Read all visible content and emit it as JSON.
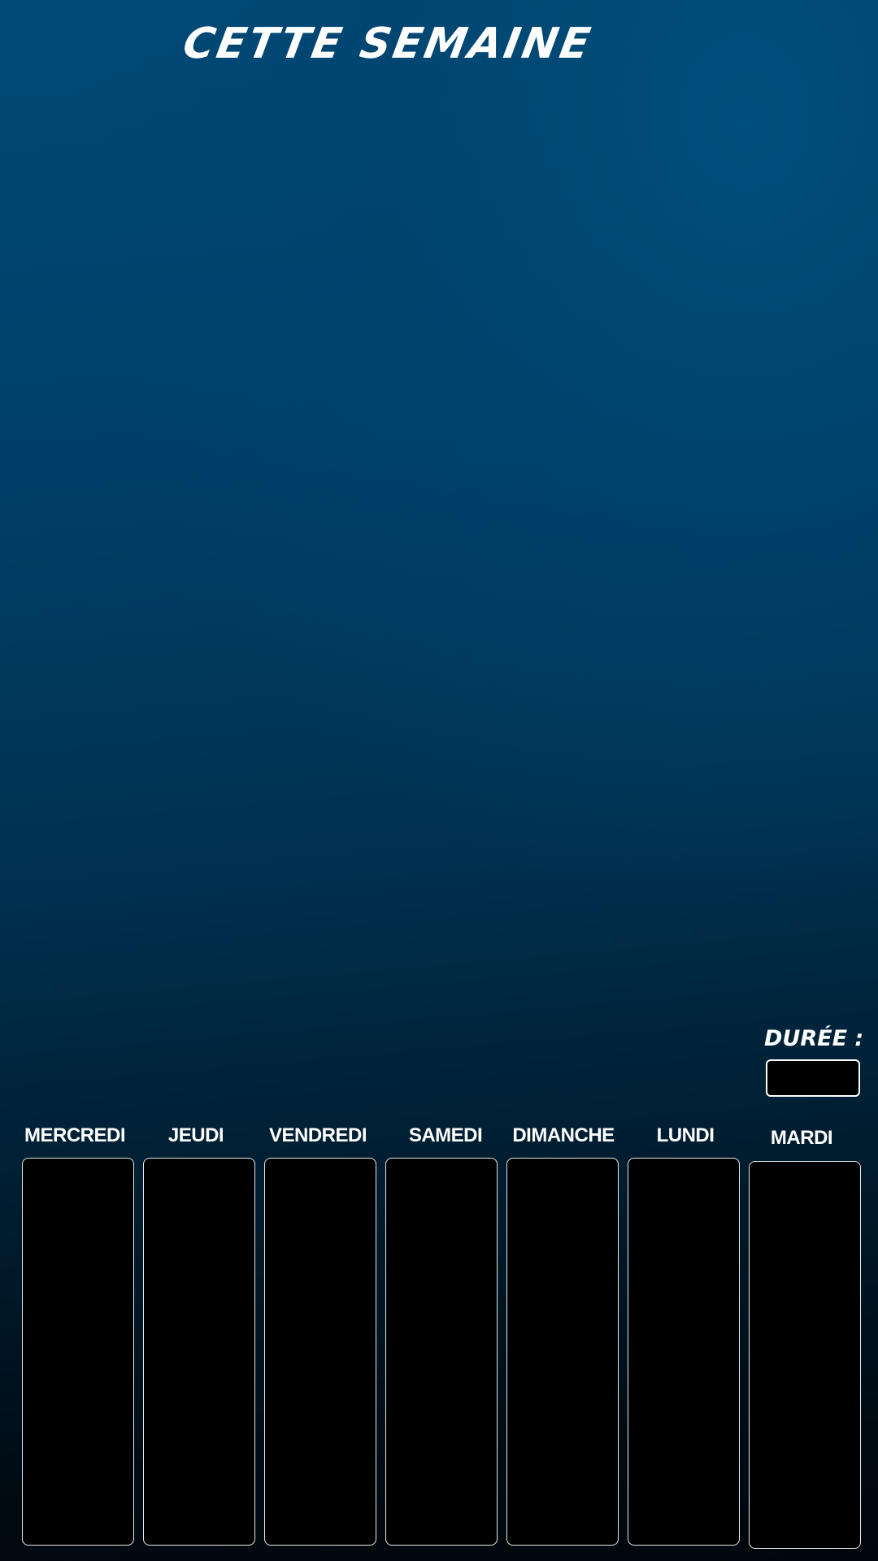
{
  "header": {
    "title": "CETTE SEMAINE"
  },
  "duration": {
    "label": "DURÉE :",
    "value": ""
  },
  "days": [
    {
      "label": "MERCREDI"
    },
    {
      "label": "JEUDI"
    },
    {
      "label": "VENDREDI"
    },
    {
      "label": "SAMEDI"
    },
    {
      "label": "DIMANCHE"
    },
    {
      "label": "LUNDI"
    },
    {
      "label": "MARDI"
    }
  ],
  "colors": {
    "background_top": "#004a78",
    "background_bottom": "#00070c",
    "box_fill": "#000000",
    "box_border": "#e8e8e8",
    "text": "#ffffff"
  }
}
